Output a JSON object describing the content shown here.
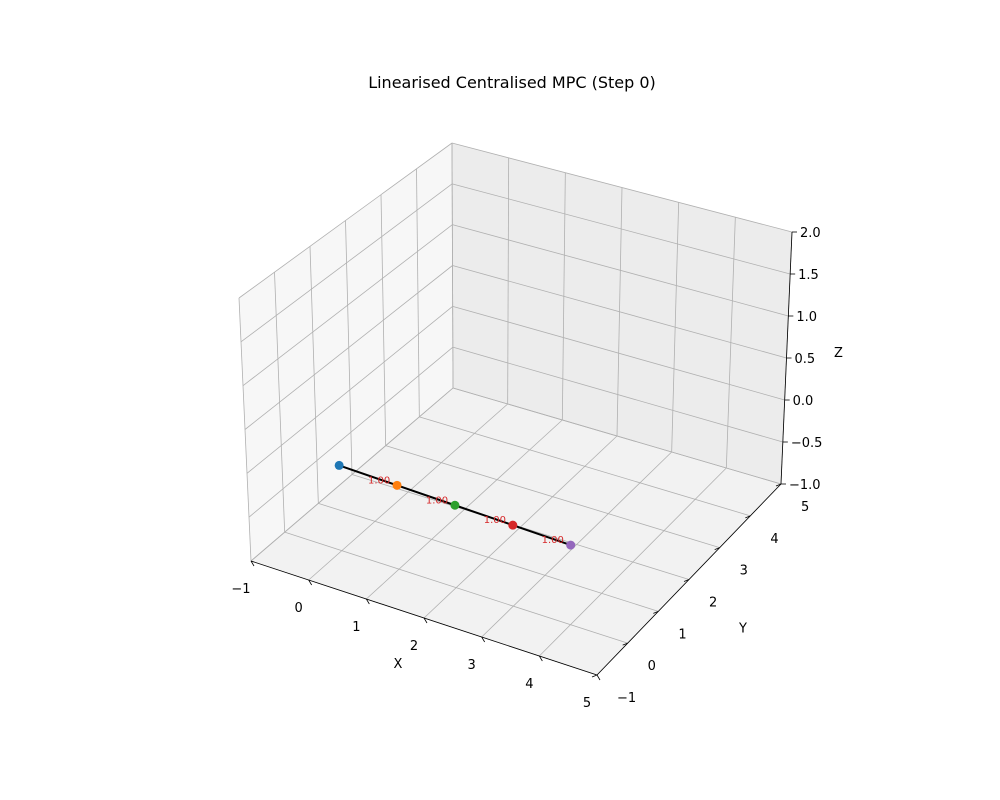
{
  "chart_data": {
    "type": "scatter",
    "projection": "3d",
    "title": "Linearised Centralised MPC (Step 0)",
    "xlabel": "X",
    "ylabel": "Y",
    "zlabel": "Z",
    "xlim": [
      -1,
      5
    ],
    "ylim": [
      -1,
      5
    ],
    "zlim": [
      -1,
      2
    ],
    "x_ticks": [
      "−1",
      "0",
      "1",
      "2",
      "3",
      "4",
      "5"
    ],
    "y_ticks": [
      "−1",
      "0",
      "1",
      "2",
      "3",
      "4",
      "5"
    ],
    "z_ticks": [
      "−1.0",
      "−0.5",
      "0.0",
      "0.5",
      "1.0",
      "1.5",
      "2.0"
    ],
    "grid": true,
    "points": [
      {
        "x": 0,
        "y": 0,
        "z": 0,
        "color": "#1f77b4"
      },
      {
        "x": 1,
        "y": 0,
        "z": 0,
        "color": "#ff7f0e"
      },
      {
        "x": 2,
        "y": 0,
        "z": 0,
        "color": "#2ca02c"
      },
      {
        "x": 3,
        "y": 0,
        "z": 0,
        "color": "#d62728"
      },
      {
        "x": 4,
        "y": 0,
        "z": 0,
        "color": "#9467bd"
      }
    ],
    "links": [
      {
        "from": 0,
        "to": 1,
        "label": "1.00"
      },
      {
        "from": 1,
        "to": 2,
        "label": "1.00"
      },
      {
        "from": 2,
        "to": 3,
        "label": "1.00"
      },
      {
        "from": 3,
        "to": 4,
        "label": "1.00"
      }
    ],
    "link_color": "#000000",
    "label_color": "#d62728"
  }
}
